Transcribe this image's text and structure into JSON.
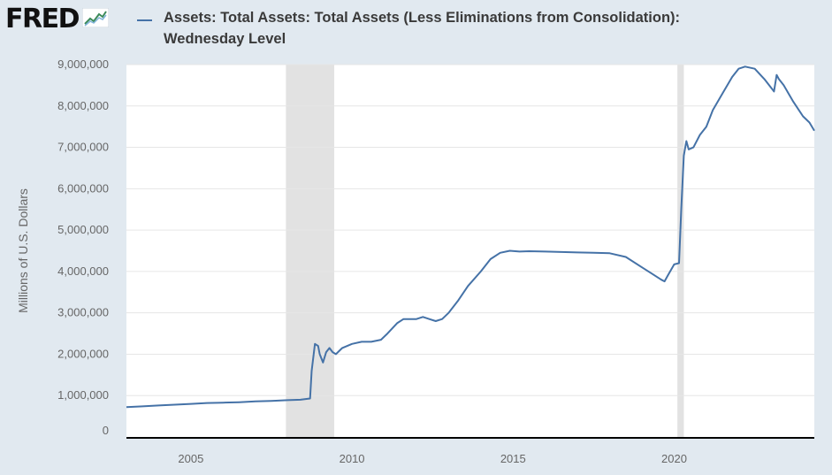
{
  "header": {
    "logo_text": "FRED",
    "logo_icon": "trend-line-icon",
    "title_line1": "Assets: Total Assets: Total Assets (Less Eliminations from Consolidation):",
    "title_line2": "Wednesday Level"
  },
  "colors": {
    "background": "#e1e9f0",
    "plot_area": "#ffffff",
    "series": "#4572a7",
    "recession": "#e2e2e2",
    "gridline": "#e6e6e6",
    "axis": "#000000"
  },
  "chart_data": {
    "type": "line",
    "title": "Assets: Total Assets: Total Assets (Less Eliminations from Consolidation): Wednesday Level",
    "xlabel": "",
    "ylabel": "Millions of U.S. Dollars",
    "xlim": [
      2003.0,
      2024.35
    ],
    "ylim": [
      0,
      9000000
    ],
    "y_ticks": [
      0,
      1000000,
      2000000,
      3000000,
      4000000,
      5000000,
      6000000,
      7000000,
      8000000,
      9000000
    ],
    "y_tick_labels": [
      "0",
      "1,000,000",
      "2,000,000",
      "3,000,000",
      "4,000,000",
      "5,000,000",
      "6,000,000",
      "7,000,000",
      "8,000,000",
      "9,000,000"
    ],
    "x_ticks": [
      2005,
      2010,
      2015,
      2020
    ],
    "x_tick_labels": [
      "2005",
      "2010",
      "2015",
      "2020"
    ],
    "grid": "horizontal",
    "recessions": [
      [
        2007.95,
        2009.45
      ],
      [
        2020.1,
        2020.3
      ]
    ],
    "series": [
      {
        "x": [
          2003.0,
          2003.5,
          2004.0,
          2004.5,
          2005.0,
          2005.5,
          2006.0,
          2006.5,
          2007.0,
          2007.5,
          2008.0,
          2008.4,
          2008.7,
          2008.75,
          2008.85,
          2008.95,
          2009.0,
          2009.1,
          2009.2,
          2009.3,
          2009.4,
          2009.5,
          2009.7,
          2010.0,
          2010.3,
          2010.6,
          2010.9,
          2011.1,
          2011.4,
          2011.6,
          2011.8,
          2012.0,
          2012.2,
          2012.4,
          2012.6,
          2012.8,
          2013.0,
          2013.3,
          2013.6,
          2014.0,
          2014.3,
          2014.6,
          2014.9,
          2015.2,
          2015.5,
          2016.0,
          2016.5,
          2017.0,
          2017.5,
          2018.0,
          2018.5,
          2019.0,
          2019.3,
          2019.6,
          2019.7,
          2019.8,
          2020.0,
          2020.15,
          2020.22,
          2020.3,
          2020.38,
          2020.45,
          2020.6,
          2020.8,
          2021.0,
          2021.2,
          2021.5,
          2021.8,
          2022.0,
          2022.2,
          2022.5,
          2022.8,
          2023.1,
          2023.18,
          2023.25,
          2023.4,
          2023.7,
          2024.0,
          2024.2,
          2024.35
        ],
        "values": [
          720000,
          740000,
          760000,
          780000,
          800000,
          820000,
          830000,
          840000,
          860000,
          870000,
          890000,
          900000,
          930000,
          1600000,
          2250000,
          2200000,
          2000000,
          1800000,
          2050000,
          2150000,
          2050000,
          2000000,
          2150000,
          2250000,
          2300000,
          2300000,
          2350000,
          2500000,
          2750000,
          2850000,
          2850000,
          2850000,
          2900000,
          2850000,
          2800000,
          2850000,
          3000000,
          3300000,
          3650000,
          4000000,
          4300000,
          4450000,
          4500000,
          4480000,
          4490000,
          4480000,
          4470000,
          4460000,
          4450000,
          4440000,
          4350000,
          4100000,
          3950000,
          3800000,
          3760000,
          3900000,
          4170000,
          4200000,
          5500000,
          6800000,
          7150000,
          6950000,
          7000000,
          7300000,
          7500000,
          7900000,
          8300000,
          8700000,
          8900000,
          8950000,
          8900000,
          8650000,
          8350000,
          8750000,
          8650000,
          8500000,
          8100000,
          7750000,
          7600000,
          7400000
        ]
      }
    ]
  }
}
